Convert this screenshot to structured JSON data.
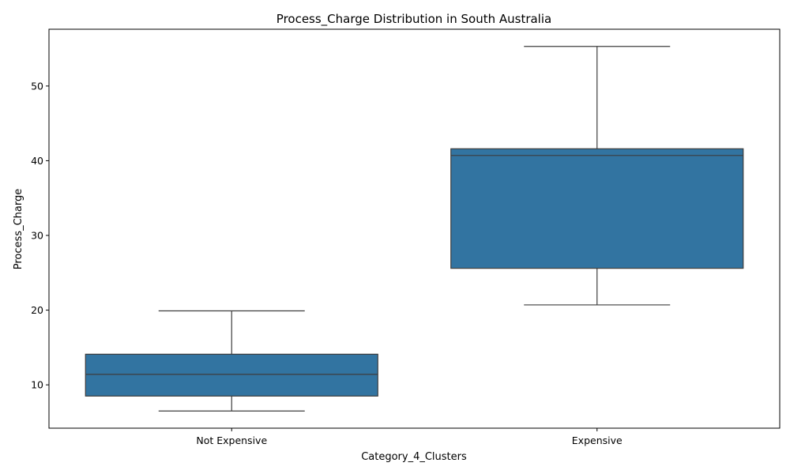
{
  "chart_data": {
    "type": "box",
    "title": "Process_Charge Distribution in South Australia",
    "xlabel": "Category_4_Clusters",
    "ylabel": "Process_Charge",
    "categories": [
      "Not Expensive",
      "Expensive"
    ],
    "boxes": [
      {
        "category": "Not Expensive",
        "min": 6.5,
        "q1": 8.5,
        "median": 11.4,
        "q3": 14.1,
        "max": 19.9
      },
      {
        "category": "Expensive",
        "min": 20.7,
        "q1": 25.6,
        "median": 40.7,
        "q3": 41.6,
        "max": 55.3
      }
    ],
    "ylim": [
      4.2,
      57.6
    ],
    "yticks": [
      10,
      20,
      30,
      40,
      50
    ],
    "ytick_labels": [
      "10",
      "20",
      "30",
      "40",
      "50"
    ],
    "box_color": "#3274a1",
    "line_color": "#3d3d3d",
    "grid": false
  }
}
